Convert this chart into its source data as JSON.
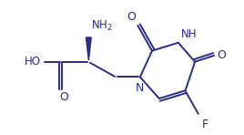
{
  "background": "#ffffff",
  "line_color": "#2b2b8a",
  "text_color": "#2b2b8a",
  "bond_lw": 1.4,
  "font_size": 8.5,
  "xlim": [
    -1.3,
    2.8
  ],
  "ylim": [
    -1.1,
    1.7
  ]
}
